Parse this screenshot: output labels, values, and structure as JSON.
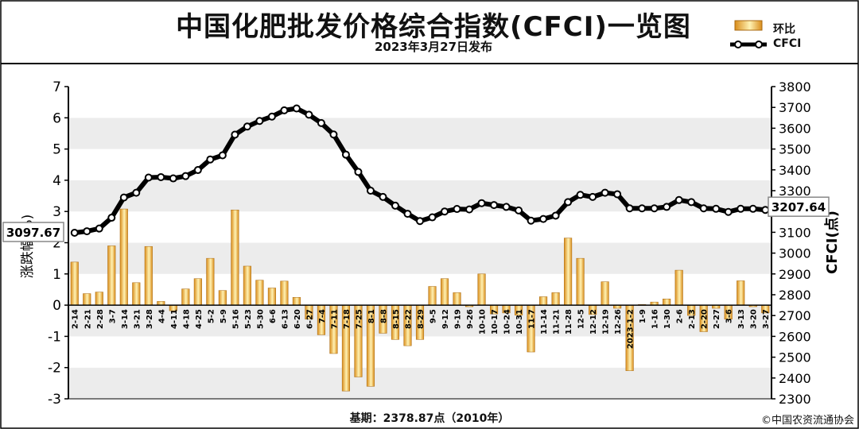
{
  "header": {
    "title": "中国化肥批发价格综合指数(CFCI)一览图",
    "subtitle": "2023年3月27日发布"
  },
  "legend": {
    "bar_label": "环比",
    "line_label": "CFCI"
  },
  "footer": {
    "base": "基期：2378.87点（2010年）",
    "copyright": "©中国农资流通协会"
  },
  "colors": {
    "bar_light": "#fff2b3",
    "bar_dark": "#d98c1a",
    "line": "#000000",
    "marker_fill": "#ffffff",
    "band": "#ececec"
  },
  "chart_data": {
    "type": "bar+line",
    "x": [
      "2-14",
      "2-21",
      "2-28",
      "3-7",
      "3-14",
      "3-21",
      "3-28",
      "4-4",
      "4-11",
      "4-18",
      "4-25",
      "5-2",
      "5-9",
      "5-16",
      "5-23",
      "5-30",
      "6-6",
      "6-13",
      "6-20",
      "6-27",
      "7-4",
      "7-11",
      "7-18",
      "7-25",
      "8-1",
      "8-8",
      "8-15",
      "8-22",
      "8-29",
      "9-5",
      "9-12",
      "9-19",
      "9-26",
      "10-10",
      "10-17",
      "10-24",
      "10-31",
      "11-7",
      "11-14",
      "11-21",
      "11-28",
      "12-5",
      "12-12",
      "12-19",
      "12-26",
      "2023-1-2",
      "1-9",
      "1-16",
      "1-30",
      "2-6",
      "2-13",
      "2-20",
      "2-27",
      "3-6",
      "3-13",
      "3-20",
      "3-27"
    ],
    "xtick_labels": [
      "2-14",
      "2-21",
      "2-28",
      "3-7",
      "3-14",
      "3-21",
      "3-28",
      "4-4",
      "4-11",
      "4-18",
      "4-25",
      "5-2",
      "5-9",
      "5-16",
      "5-23",
      "5-30",
      "6-6",
      "6-13",
      "6-20",
      "6-27",
      "7-4",
      "7-11",
      "7-18",
      "7-25",
      "8-1",
      "8-8",
      "8-15",
      "8-22",
      "8-29",
      "9-5",
      "9-12",
      "9-19",
      "9-26",
      "10-10",
      "10-17",
      "10-24",
      "10-31",
      "11-7",
      "11-14",
      "11-21",
      "11-28",
      "12-5",
      "12-12",
      "12-19",
      "12-26",
      "2023-1-2",
      "1-9",
      "1-16",
      "1-30",
      "2-6",
      "2-13",
      "2-20",
      "2-27",
      "3-6",
      "3-13",
      "3-20",
      "3-27"
    ],
    "series": [
      {
        "name": "环比",
        "type": "bar",
        "axis": "left",
        "values": [
          1.38,
          0.37,
          0.42,
          1.9,
          3.08,
          0.72,
          1.88,
          0.12,
          -0.18,
          0.52,
          0.85,
          1.5,
          0.47,
          3.05,
          1.25,
          0.8,
          0.55,
          0.77,
          0.25,
          -0.45,
          -0.95,
          -1.55,
          -2.75,
          -2.3,
          -2.6,
          -0.9,
          -1.1,
          -1.3,
          -1.1,
          0.6,
          0.85,
          0.4,
          -0.05,
          1.0,
          -0.28,
          -0.25,
          -0.32,
          -1.5,
          0.27,
          0.4,
          2.15,
          1.5,
          -0.3,
          0.75,
          -0.1,
          -2.1,
          0.02,
          0.1,
          0.2,
          1.12,
          -0.33,
          -0.85,
          -0.1,
          -0.45,
          0.78,
          -0.05,
          -0.25
        ]
      },
      {
        "name": "CFCI",
        "type": "line",
        "axis": "right",
        "values": [
          3097.67,
          3105,
          3118,
          3170,
          3267,
          3290,
          3363,
          3365,
          3359,
          3370,
          3399,
          3450,
          3470,
          3569,
          3608,
          3635,
          3656,
          3686,
          3695,
          3665,
          3625,
          3570,
          3473,
          3390,
          3300,
          3270,
          3228,
          3189,
          3154,
          3172,
          3200,
          3212,
          3210,
          3240,
          3231,
          3222,
          3205,
          3156,
          3164,
          3180,
          3245,
          3280,
          3270,
          3290,
          3283,
          3215,
          3215,
          3215,
          3222,
          3255,
          3245,
          3215,
          3213,
          3198,
          3213,
          3213,
          3207.64
        ]
      }
    ],
    "data_labels": {
      "first": "3097.67",
      "last": "3207.64"
    },
    "y_left": {
      "label": "涨跌幅(%)",
      "min": -3,
      "max": 7,
      "ticks": [
        -3,
        -2,
        -1,
        0,
        1,
        2,
        3,
        4,
        5,
        6,
        7
      ]
    },
    "y_right": {
      "label": "CFCI(点)",
      "min": 2300,
      "max": 3800,
      "ticks": [
        2300,
        2400,
        2500,
        2600,
        2700,
        2800,
        2900,
        3000,
        3100,
        3200,
        3300,
        3400,
        3500,
        3600,
        3700,
        3800
      ]
    },
    "grid": "alternating horizontal bands",
    "legend_position": "top-right"
  }
}
